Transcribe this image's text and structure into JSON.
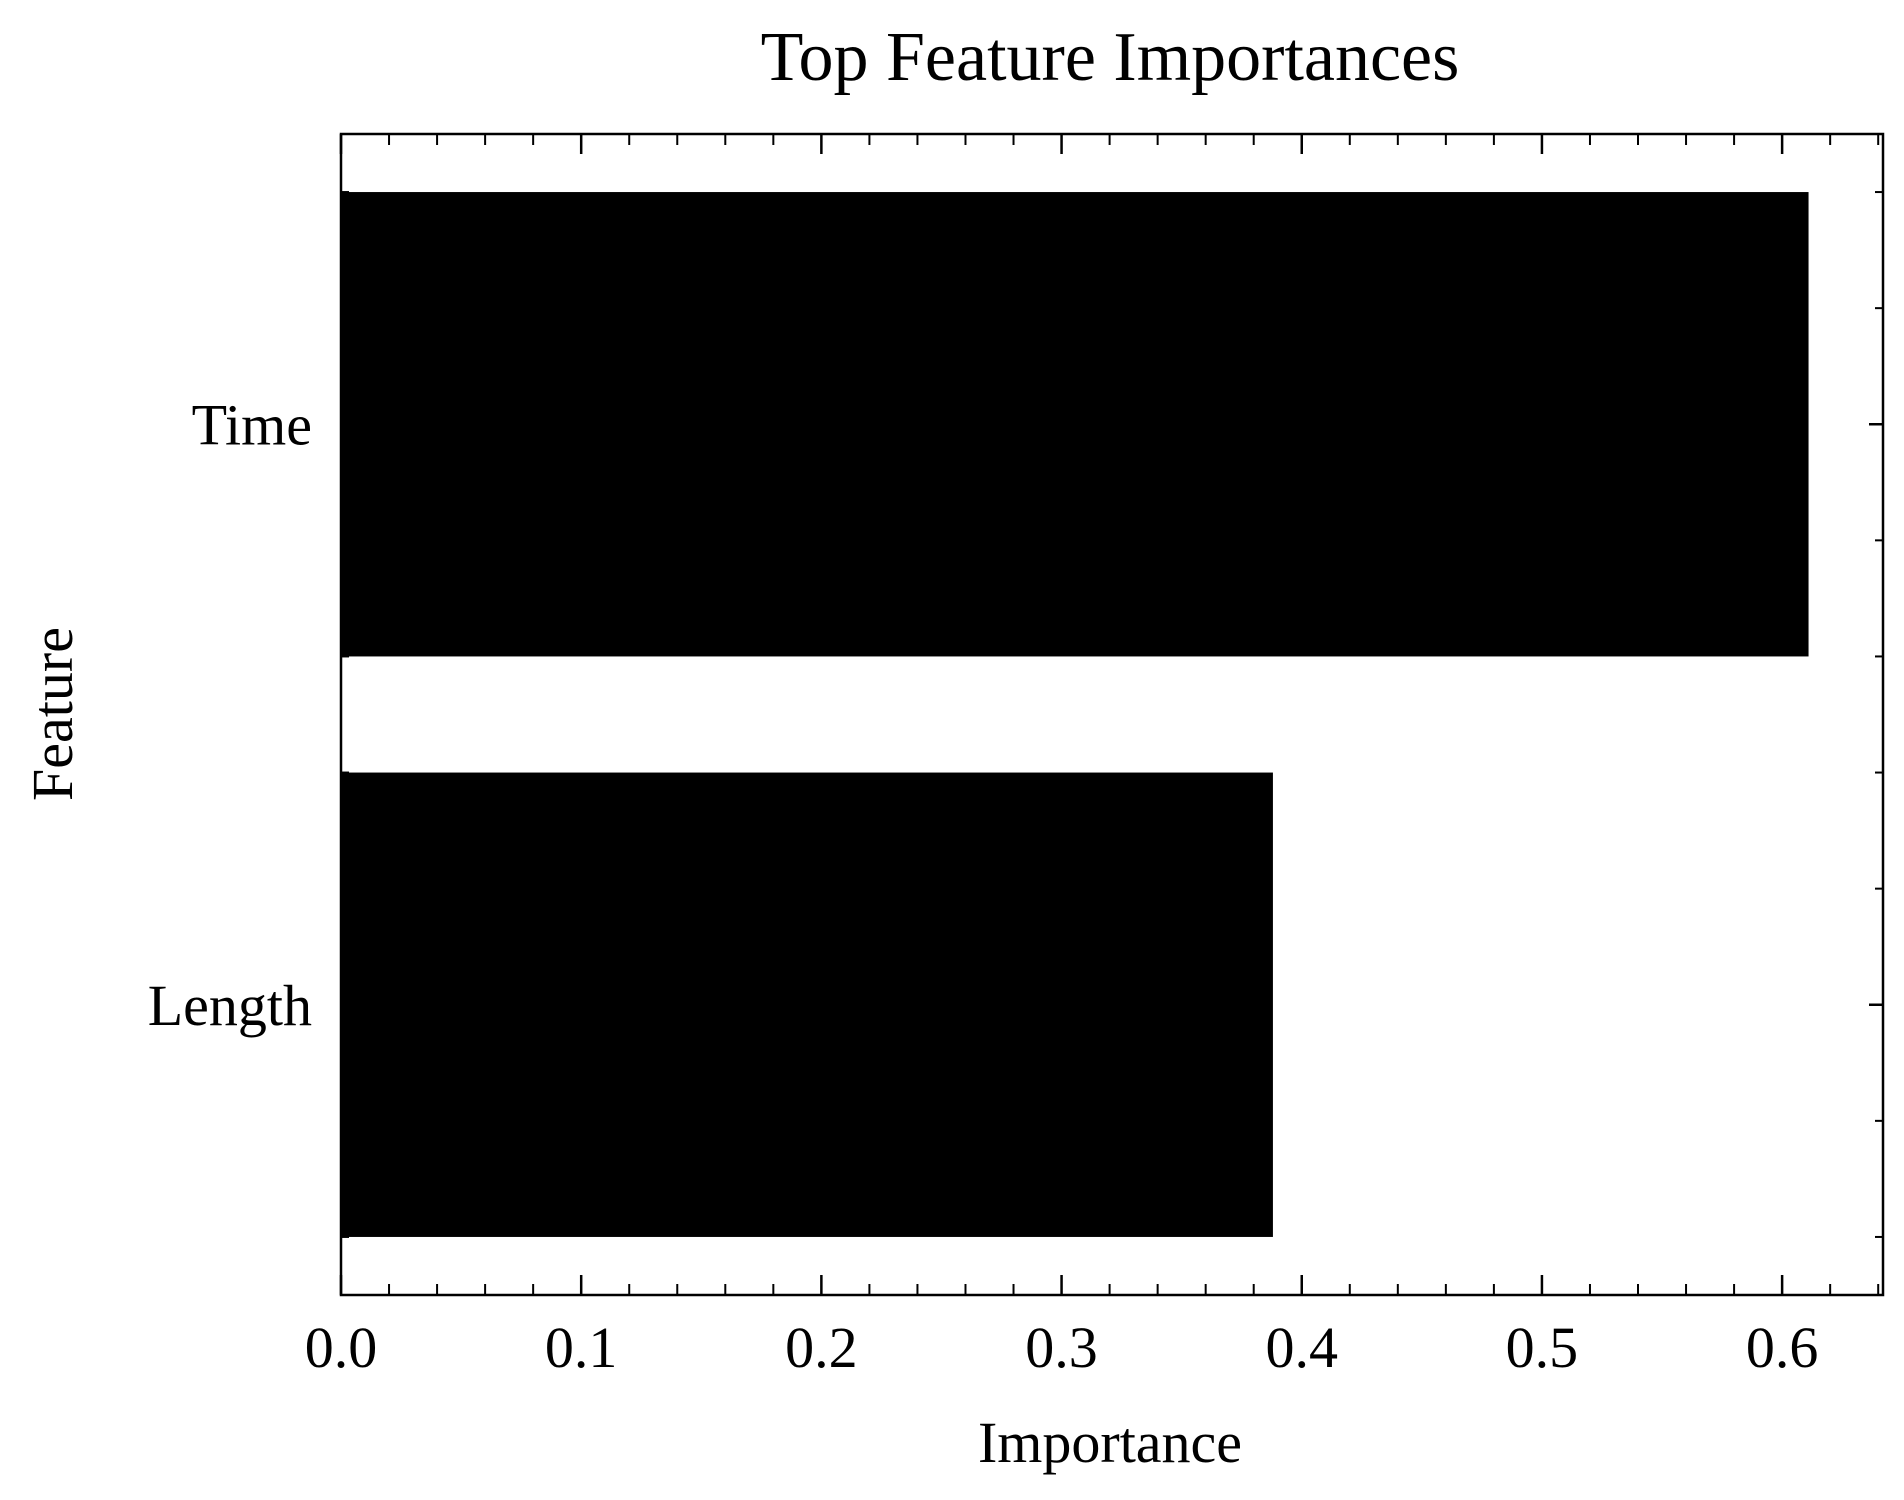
{
  "chart_data": {
    "type": "bar",
    "orientation": "horizontal",
    "title": "Top Feature Importances",
    "xlabel": "Importance",
    "ylabel": "Feature",
    "categories": [
      "Time",
      "Length"
    ],
    "values": [
      0.611,
      0.388
    ],
    "xlim": [
      0,
      0.642
    ],
    "xticks": [
      "0.0",
      "0.1",
      "0.2",
      "0.3",
      "0.4",
      "0.5",
      "0.6"
    ],
    "bar_color": "#000000",
    "grid": false,
    "legend": "none"
  }
}
